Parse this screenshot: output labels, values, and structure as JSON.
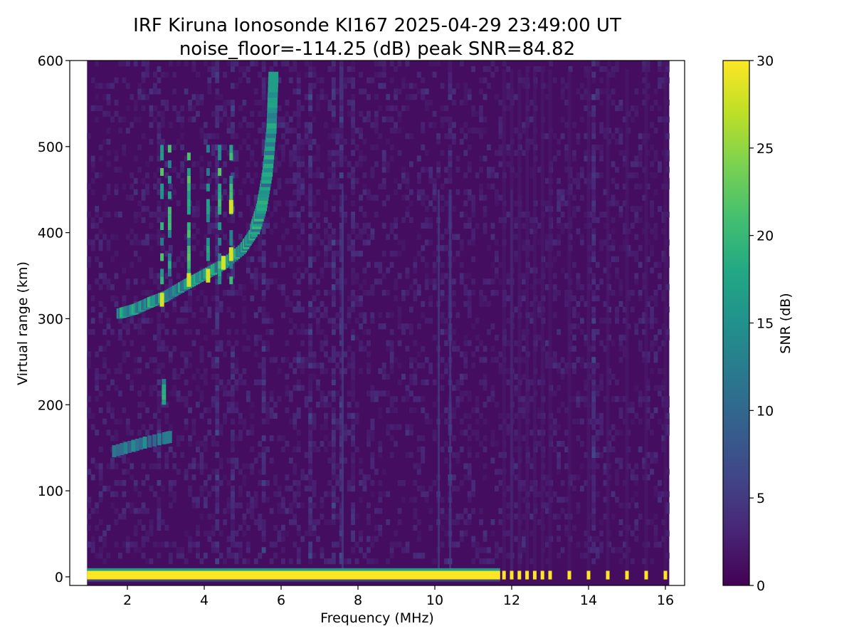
{
  "chart_data": {
    "type": "heatmap",
    "title": "IRF Kiruna Ionosonde KI167 2025-04-29 23:49:00  UT",
    "subtitle": "noise_floor=-114.25 (dB) peak SNR=84.82",
    "xlabel": "Frequency (MHz)",
    "ylabel": "Virtual range (km)",
    "colorbar_label": "SNR (dB)",
    "colormap": "viridis",
    "xlim": [
      0.5,
      16.5
    ],
    "ylim": [
      -10,
      600
    ],
    "clim": [
      0,
      30
    ],
    "xticks": [
      2,
      4,
      6,
      8,
      10,
      12,
      14,
      16
    ],
    "yticks": [
      0,
      100,
      200,
      300,
      400,
      500,
      600
    ],
    "cticks": [
      0,
      5,
      10,
      15,
      20,
      25,
      30
    ],
    "data_freq_range_mhz": [
      0.95,
      16.1
    ],
    "background_snr_db": 1,
    "features": [
      {
        "name": "ground echo band",
        "x_range": [
          0.95,
          11.7
        ],
        "y_range": [
          -3,
          7
        ],
        "snr_db": 30
      },
      {
        "name": "discrete channel echoes",
        "x": [
          11.8,
          12.0,
          12.2,
          12.4,
          12.6,
          12.8,
          13.0,
          13.5,
          14.0,
          14.5,
          15.0,
          15.5,
          16.0
        ],
        "y_range": [
          -3,
          7
        ],
        "snr_db": 30
      },
      {
        "name": "F2 trace",
        "points": [
          [
            1.8,
            305
          ],
          [
            2.2,
            310
          ],
          [
            2.6,
            318
          ],
          [
            3.0,
            325
          ],
          [
            3.5,
            338
          ],
          [
            4.0,
            350
          ],
          [
            4.5,
            362
          ],
          [
            5.0,
            380
          ],
          [
            5.3,
            400
          ],
          [
            5.5,
            430
          ],
          [
            5.65,
            470
          ],
          [
            5.75,
            520
          ],
          [
            5.8,
            580
          ]
        ],
        "snr_db": 14
      },
      {
        "name": "F2 vertical spread streaks",
        "x": [
          2.9,
          3.1,
          3.6,
          4.1,
          4.4,
          4.7
        ],
        "y_range": [
          340,
          500
        ],
        "snr_db": 18
      },
      {
        "name": "F2 peak echoes",
        "points": [
          [
            2.9,
            322
          ],
          [
            3.6,
            345
          ],
          [
            4.1,
            350
          ],
          [
            4.5,
            365
          ],
          [
            4.7,
            430
          ],
          [
            4.7,
            375
          ]
        ],
        "snr_db": 28
      },
      {
        "name": "E region echo",
        "points": [
          [
            1.6,
            145
          ],
          [
            2.0,
            150
          ],
          [
            2.4,
            155
          ],
          [
            2.9,
            160
          ],
          [
            3.1,
            162
          ]
        ],
        "snr_db": 12
      },
      {
        "name": "2.9 MHz patch",
        "x": 2.95,
        "y_range": [
          200,
          230
        ],
        "snr_db": 16
      },
      {
        "name": "interference lines",
        "x": [
          7.6,
          10.1,
          10.4,
          12.0
        ],
        "y_range": [
          0,
          450
        ],
        "snr_db": 5
      }
    ]
  }
}
